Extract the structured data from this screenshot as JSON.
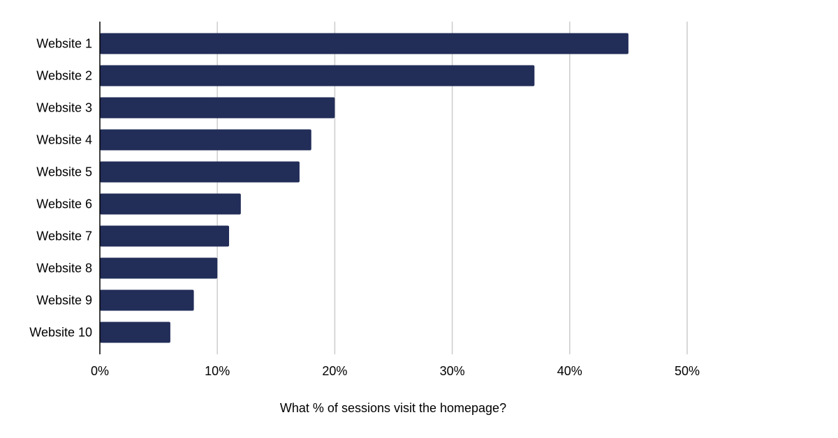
{
  "chart_data": {
    "type": "bar",
    "orientation": "horizontal",
    "categories": [
      "Website 1",
      "Website 2",
      "Website 3",
      "Website 4",
      "Website 5",
      "Website 6",
      "Website 7",
      "Website 8",
      "Website 9",
      "Website 10"
    ],
    "values": [
      45,
      37,
      20,
      18,
      17,
      12,
      11,
      10,
      8,
      6
    ],
    "xlabel": "What % of sessions visit the homepage?",
    "ylabel": "",
    "title": "",
    "xlim": [
      0,
      50
    ],
    "x_ticks": [
      0,
      10,
      20,
      30,
      40,
      50
    ],
    "x_tick_labels": [
      "0%",
      "10%",
      "20%",
      "30%",
      "40%",
      "50%"
    ],
    "grid": "vertical",
    "legend": "none",
    "colors": {
      "bar": "#222d58",
      "grid": "#cccccc",
      "axis": "#000000"
    }
  }
}
